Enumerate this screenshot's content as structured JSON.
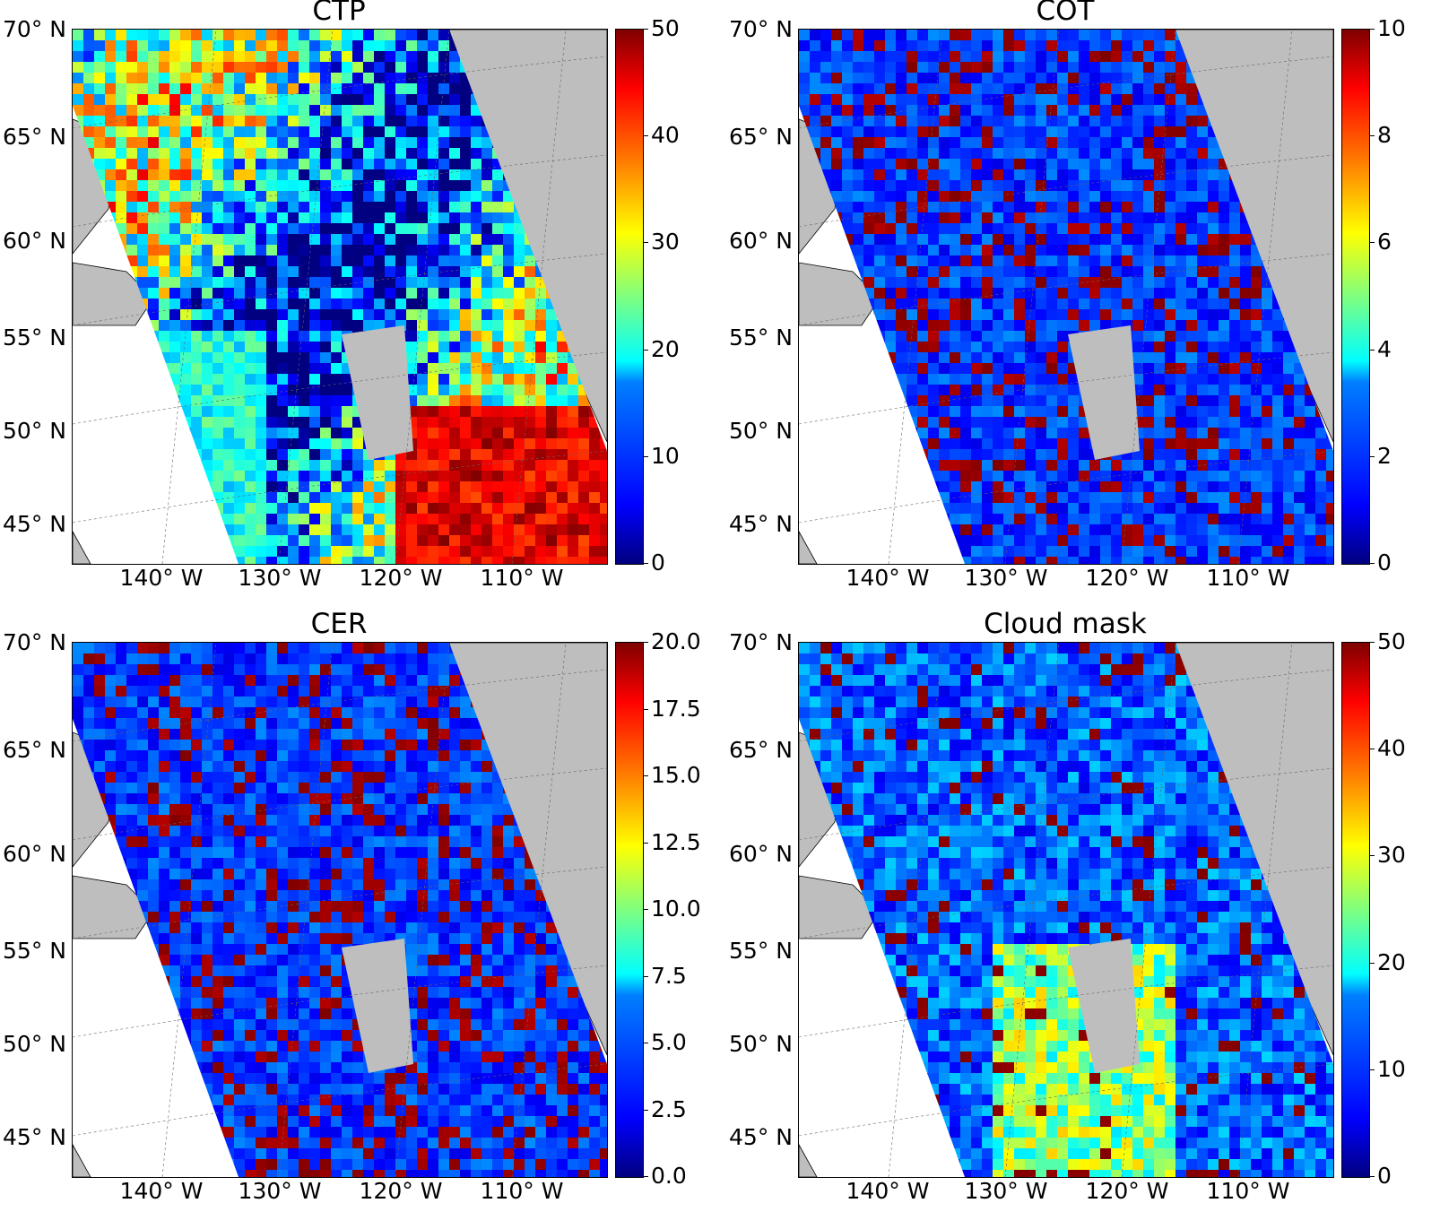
{
  "panels": [
    {
      "id": "ctp",
      "title": "CTP",
      "lat_labels": [
        "70° N",
        "65° N",
        "60° N",
        "55° N",
        "50° N",
        "45° N"
      ],
      "lon_labels": [
        "140° W",
        "130° W",
        "120° W",
        "110° W"
      ],
      "colorbar_ticks": [
        "50",
        "40",
        "30",
        "20",
        "10",
        "0"
      ],
      "colorbar_range": [
        0,
        50
      ],
      "dominant": "mixed"
    },
    {
      "id": "cot",
      "title": "COT",
      "lat_labels": [
        "70° N",
        "65° N",
        "60° N",
        "55° N",
        "50° N",
        "45° N"
      ],
      "lon_labels": [
        "140° W",
        "130° W",
        "120° W",
        "110° W"
      ],
      "colorbar_ticks": [
        "10",
        "8",
        "6",
        "4",
        "2",
        "0"
      ],
      "colorbar_range": [
        0,
        10
      ],
      "dominant": "blue"
    },
    {
      "id": "cer",
      "title": "CER",
      "lat_labels": [
        "70° N",
        "65° N",
        "60° N",
        "55° N",
        "50° N",
        "45° N"
      ],
      "lon_labels": [
        "140° W",
        "130° W",
        "120° W",
        "110° W"
      ],
      "colorbar_ticks": [
        "20.0",
        "17.5",
        "15.0",
        "12.5",
        "10.0",
        "7.5",
        "5.0",
        "2.5",
        "0.0"
      ],
      "colorbar_range": [
        0,
        20
      ],
      "dominant": "blue"
    },
    {
      "id": "cloud-mask",
      "title": "Cloud mask",
      "lat_labels": [
        "70° N",
        "65° N",
        "60° N",
        "55° N",
        "50° N",
        "45° N"
      ],
      "lon_labels": [
        "140° W",
        "130° W",
        "120° W",
        "110° W"
      ],
      "colorbar_ticks": [
        "50",
        "40",
        "30",
        "20",
        "10",
        "0"
      ],
      "colorbar_range": [
        0,
        50
      ],
      "dominant": "blue-cyan"
    }
  ],
  "colors": {
    "land": "#bebebe",
    "lake": "#7a9bd6",
    "ocean": "#ffffff",
    "missing": "#bebebe",
    "colormap": "jet"
  }
}
